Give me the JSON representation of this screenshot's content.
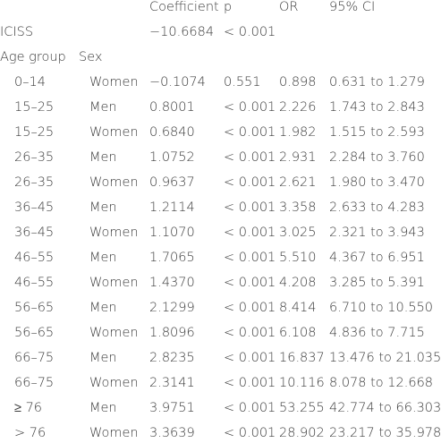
{
  "table": {
    "header": {
      "coefficient": "Coefficient",
      "p": "p",
      "or": "OR",
      "ci": "95% CI"
    },
    "iciss": {
      "label": "ICISS",
      "coefficient": "−10.6684",
      "p": "< 0.001"
    },
    "group_header": {
      "age_group": "Age group",
      "sex": "Sex"
    },
    "rows": [
      {
        "age": "0–14",
        "sex": "Women",
        "coefficient": "−0.1074",
        "p": "0.551",
        "or": "0.898",
        "ci": "0.631 to 1.279"
      },
      {
        "age": "15–25",
        "sex": "Men",
        "coefficient": "0.8001",
        "p": "< 0.001",
        "or": "2.226",
        "ci": "1.743 to 2.843"
      },
      {
        "age": "15–25",
        "sex": "Women",
        "coefficient": "0.6840",
        "p": "< 0.001",
        "or": "1.982",
        "ci": "1.515 to 2.593"
      },
      {
        "age": "26–35",
        "sex": "Men",
        "coefficient": "1.0752",
        "p": "< 0.001",
        "or": "2.931",
        "ci": "2.284 to 3.760"
      },
      {
        "age": "26–35",
        "sex": "Women",
        "coefficient": "0.9637",
        "p": "< 0.001",
        "or": "2.621",
        "ci": "1.980 to 3.470"
      },
      {
        "age": "36–45",
        "sex": "Men",
        "coefficient": "1.2114",
        "p": "< 0.001",
        "or": "3.358",
        "ci": "2.633 to 4.283"
      },
      {
        "age": "36–45",
        "sex": "Women",
        "coefficient": "1.1070",
        "p": "< 0.001",
        "or": "3.025",
        "ci": "2.321 to 3.943"
      },
      {
        "age": "46–55",
        "sex": "Men",
        "coefficient": "1.7065",
        "p": "< 0.001",
        "or": "5.510",
        "ci": "4.367 to 6.951"
      },
      {
        "age": "46–55",
        "sex": "Women",
        "coefficient": "1.4370",
        "p": "< 0.001",
        "or": "4.208",
        "ci": "3.285 to 5.391"
      },
      {
        "age": "56–65",
        "sex": "Men",
        "coefficient": "2.1299",
        "p": "< 0.001",
        "or": "8.414",
        "ci": "6.710 to 10.550"
      },
      {
        "age": "56–65",
        "sex": "Women",
        "coefficient": "1.8096",
        "p": "< 0.001",
        "or": "6.108",
        "ci": "4.836 to 7.715"
      },
      {
        "age": "66–75",
        "sex": "Men",
        "coefficient": "2.8235",
        "p": "< 0.001",
        "or": "16.837",
        "ci": "13.476 to 21.035"
      },
      {
        "age": "66–75",
        "sex": "Women",
        "coefficient": "2.3141",
        "p": "< 0.001",
        "or": "10.116",
        "ci": "8.078 to 12.668"
      },
      {
        "age": "≥ 76",
        "sex": "Men",
        "coefficient": "3.9751",
        "p": "< 0.001",
        "or": "53.255",
        "ci": "42.774 to 66.303"
      },
      {
        "age": "> 76",
        "sex": "Women",
        "coefficient": "3.3639",
        "p": "< 0.001",
        "or": "28.902",
        "ci": "23.217 to 35.978"
      }
    ]
  }
}
